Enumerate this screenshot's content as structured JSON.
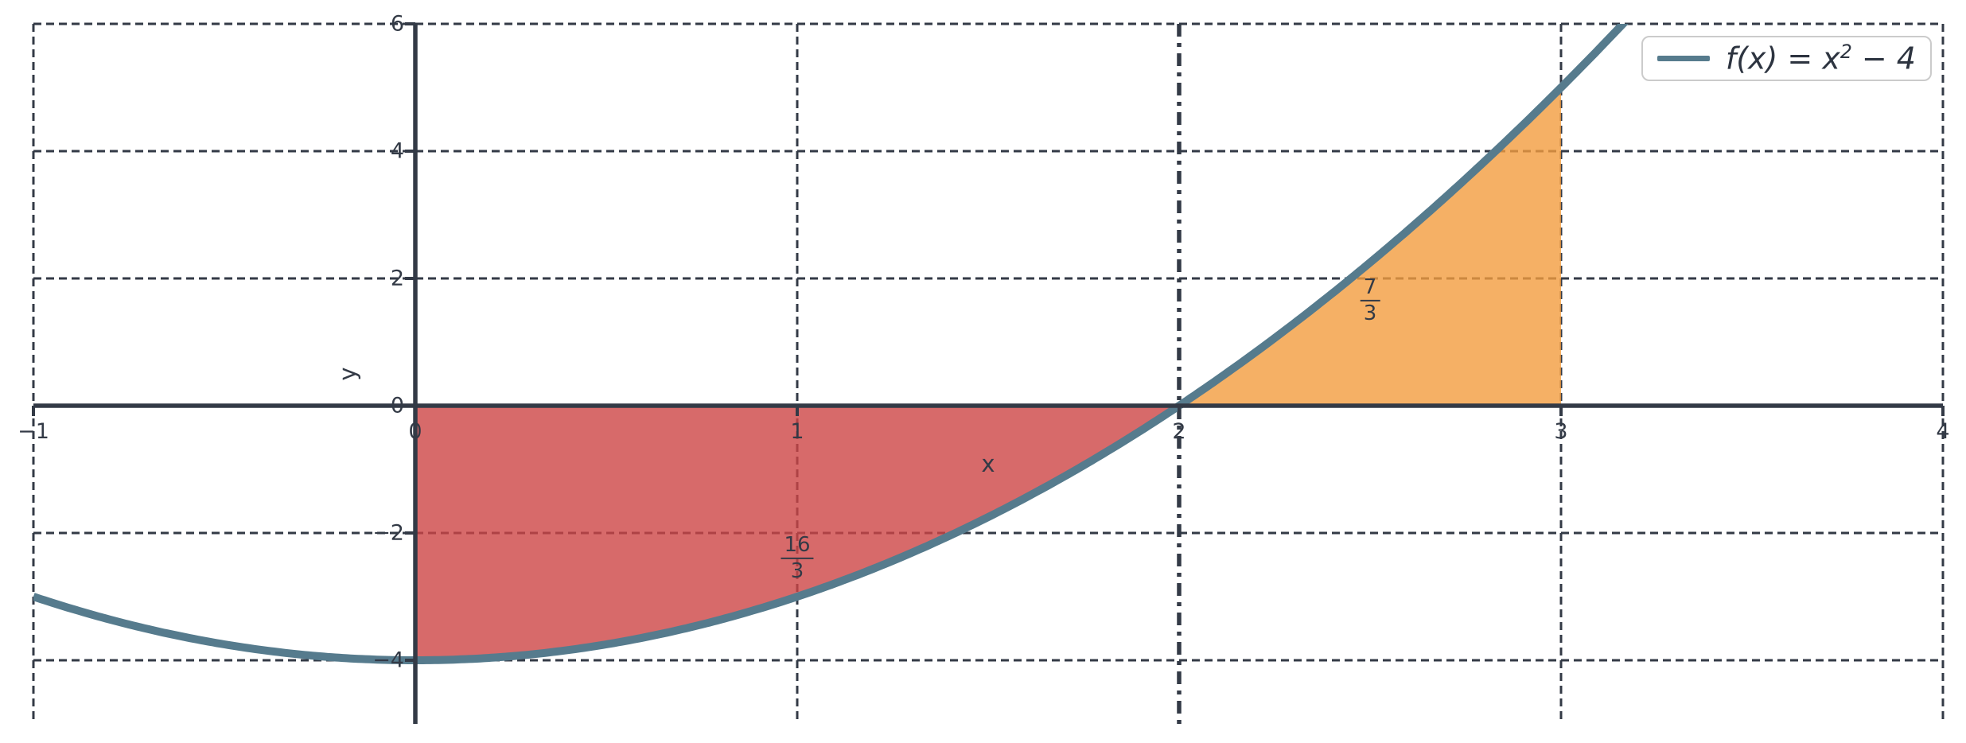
{
  "chart_data": {
    "type": "line",
    "title": "",
    "xlabel": "x",
    "ylabel": "y",
    "x_range": [
      -1,
      4
    ],
    "y_range": [
      -5,
      6
    ],
    "grid": true,
    "grid_style": "dashed",
    "background": "#ffffff",
    "axis_color": "#333A46",
    "curve_color": "#567B8D",
    "curve_width": 10,
    "function": {
      "expression": "f(x) = x^2 - 4",
      "a": 1,
      "b": 0,
      "c": -4
    },
    "x_ticks": [
      {
        "v": -1,
        "label": "−1"
      },
      {
        "v": 0,
        "label": "0"
      },
      {
        "v": 1,
        "label": "1"
      },
      {
        "v": 2,
        "label": "2"
      },
      {
        "v": 3,
        "label": "3"
      },
      {
        "v": 4,
        "label": "4"
      }
    ],
    "y_ticks": [
      {
        "v": -4,
        "label": "−4"
      },
      {
        "v": -2,
        "label": "−2"
      },
      {
        "v": 0,
        "label": "0"
      },
      {
        "v": 2,
        "label": "2"
      },
      {
        "v": 4,
        "label": "4"
      },
      {
        "v": 6,
        "label": "6"
      }
    ],
    "root_line": {
      "x": 2,
      "style": "dashdot",
      "color": "#333A46"
    },
    "regions": [
      {
        "name": "shaded-area-below-axis",
        "x_from": 0,
        "x_to": 2,
        "color": "#CD4545",
        "opacity": 0.8,
        "area_value": "16/3",
        "label": {
          "num": "16",
          "den": "3"
        },
        "label_at": {
          "x": 1.0,
          "y": -2.4
        }
      },
      {
        "name": "shaded-area-above-axis",
        "x_from": 2,
        "x_to": 3,
        "color": "#F39C3F",
        "opacity": 0.8,
        "area_value": "7/3",
        "label": {
          "num": "7",
          "den": "3"
        },
        "label_at": {
          "x": 2.5,
          "y": 1.65
        }
      }
    ],
    "legend": {
      "position": "upper right",
      "label": "f(x) = x² − 4",
      "parts": {
        "pre": "f(x) = x",
        "sup": "2",
        "post": " − 4"
      }
    }
  }
}
